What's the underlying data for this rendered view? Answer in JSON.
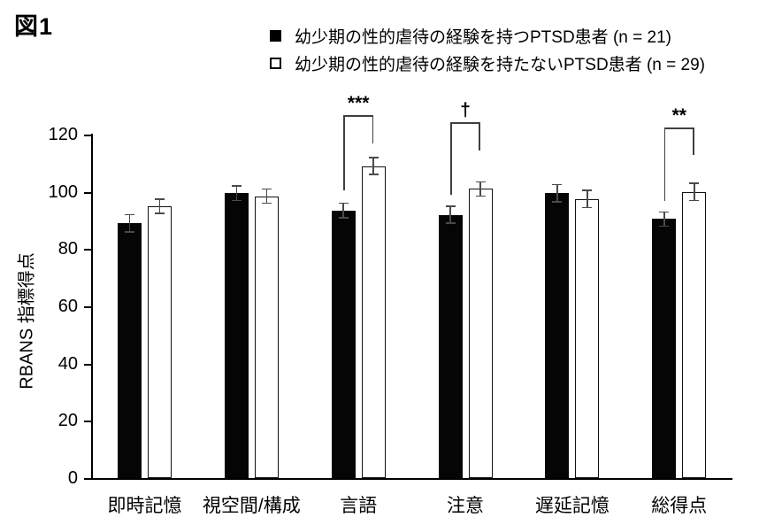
{
  "figure_label": "図1",
  "legend": {
    "items": [
      {
        "label": "幼少期の性的虐待の経験を持つPTSD患者 (n = 21)",
        "marker": "filled-square",
        "color": "#000000"
      },
      {
        "label": "幼少期の性的虐待の経験を持たないPTSD患者 (n = 29)",
        "marker": "open-square",
        "color": "#ffffff"
      }
    ]
  },
  "chart_data": {
    "type": "bar",
    "title": "図1",
    "xlabel": "",
    "ylabel": "RBANS 指標得点",
    "ylim": [
      0,
      120
    ],
    "yticks": [
      0,
      20,
      40,
      60,
      80,
      100,
      120
    ],
    "grid": false,
    "legend_position": "top",
    "categories": [
      "即時記憶",
      "視空間/構成",
      "言語",
      "注意",
      "遅延記憶",
      "総得点"
    ],
    "series": [
      {
        "name": "幼少期の性的虐待の経験を持つPTSD患者 (n = 21)",
        "fill": "#000000",
        "values": [
          89,
          99.5,
          93.5,
          92,
          99.5,
          90.5
        ],
        "errors": [
          3,
          2.5,
          2.5,
          3,
          3,
          2.5
        ]
      },
      {
        "name": "幼少期の性的虐待の経験を持たないPTSD患者 (n = 29)",
        "fill": "#ffffff",
        "values": [
          95,
          98.5,
          109,
          101,
          97.5,
          100
        ],
        "errors": [
          2.5,
          2.5,
          3,
          2.5,
          3,
          3
        ]
      }
    ],
    "annotations": [
      {
        "category": "言語",
        "label": "***"
      },
      {
        "category": "注意",
        "label": "†"
      },
      {
        "category": "総得点",
        "label": "**"
      }
    ]
  }
}
